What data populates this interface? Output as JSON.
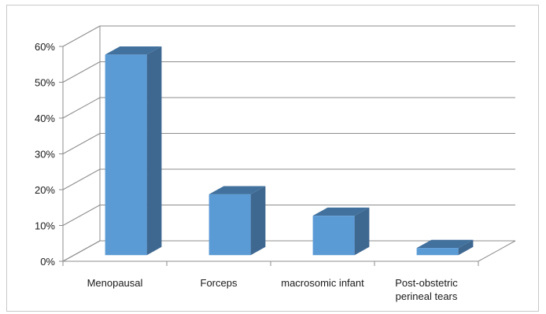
{
  "chart_data": {
    "type": "bar",
    "style": "3d-column",
    "categories": [
      "Menopausal",
      "Forceps",
      "macrosomic infant",
      "Post-obstetric perineal tears"
    ],
    "category_lines": [
      [
        "Menopausal"
      ],
      [
        "Forceps"
      ],
      [
        "macrosomic infant"
      ],
      [
        "Post-obstetric",
        "perineal tears"
      ]
    ],
    "values": [
      56,
      17,
      11,
      2
    ],
    "title": "",
    "xlabel": "",
    "ylabel": "",
    "ylim": [
      0,
      60
    ],
    "yticks": [
      0,
      10,
      20,
      30,
      40,
      50,
      60
    ],
    "ytick_labels": [
      "0%",
      "10%",
      "20%",
      "30%",
      "40%",
      "50%",
      "60%"
    ],
    "grid": true,
    "legend": "none",
    "colors": {
      "bar_front": "#5b9bd5",
      "bar_top": "#41719c",
      "bar_side": "#3f6891",
      "grid": "#8c8c8c"
    }
  }
}
